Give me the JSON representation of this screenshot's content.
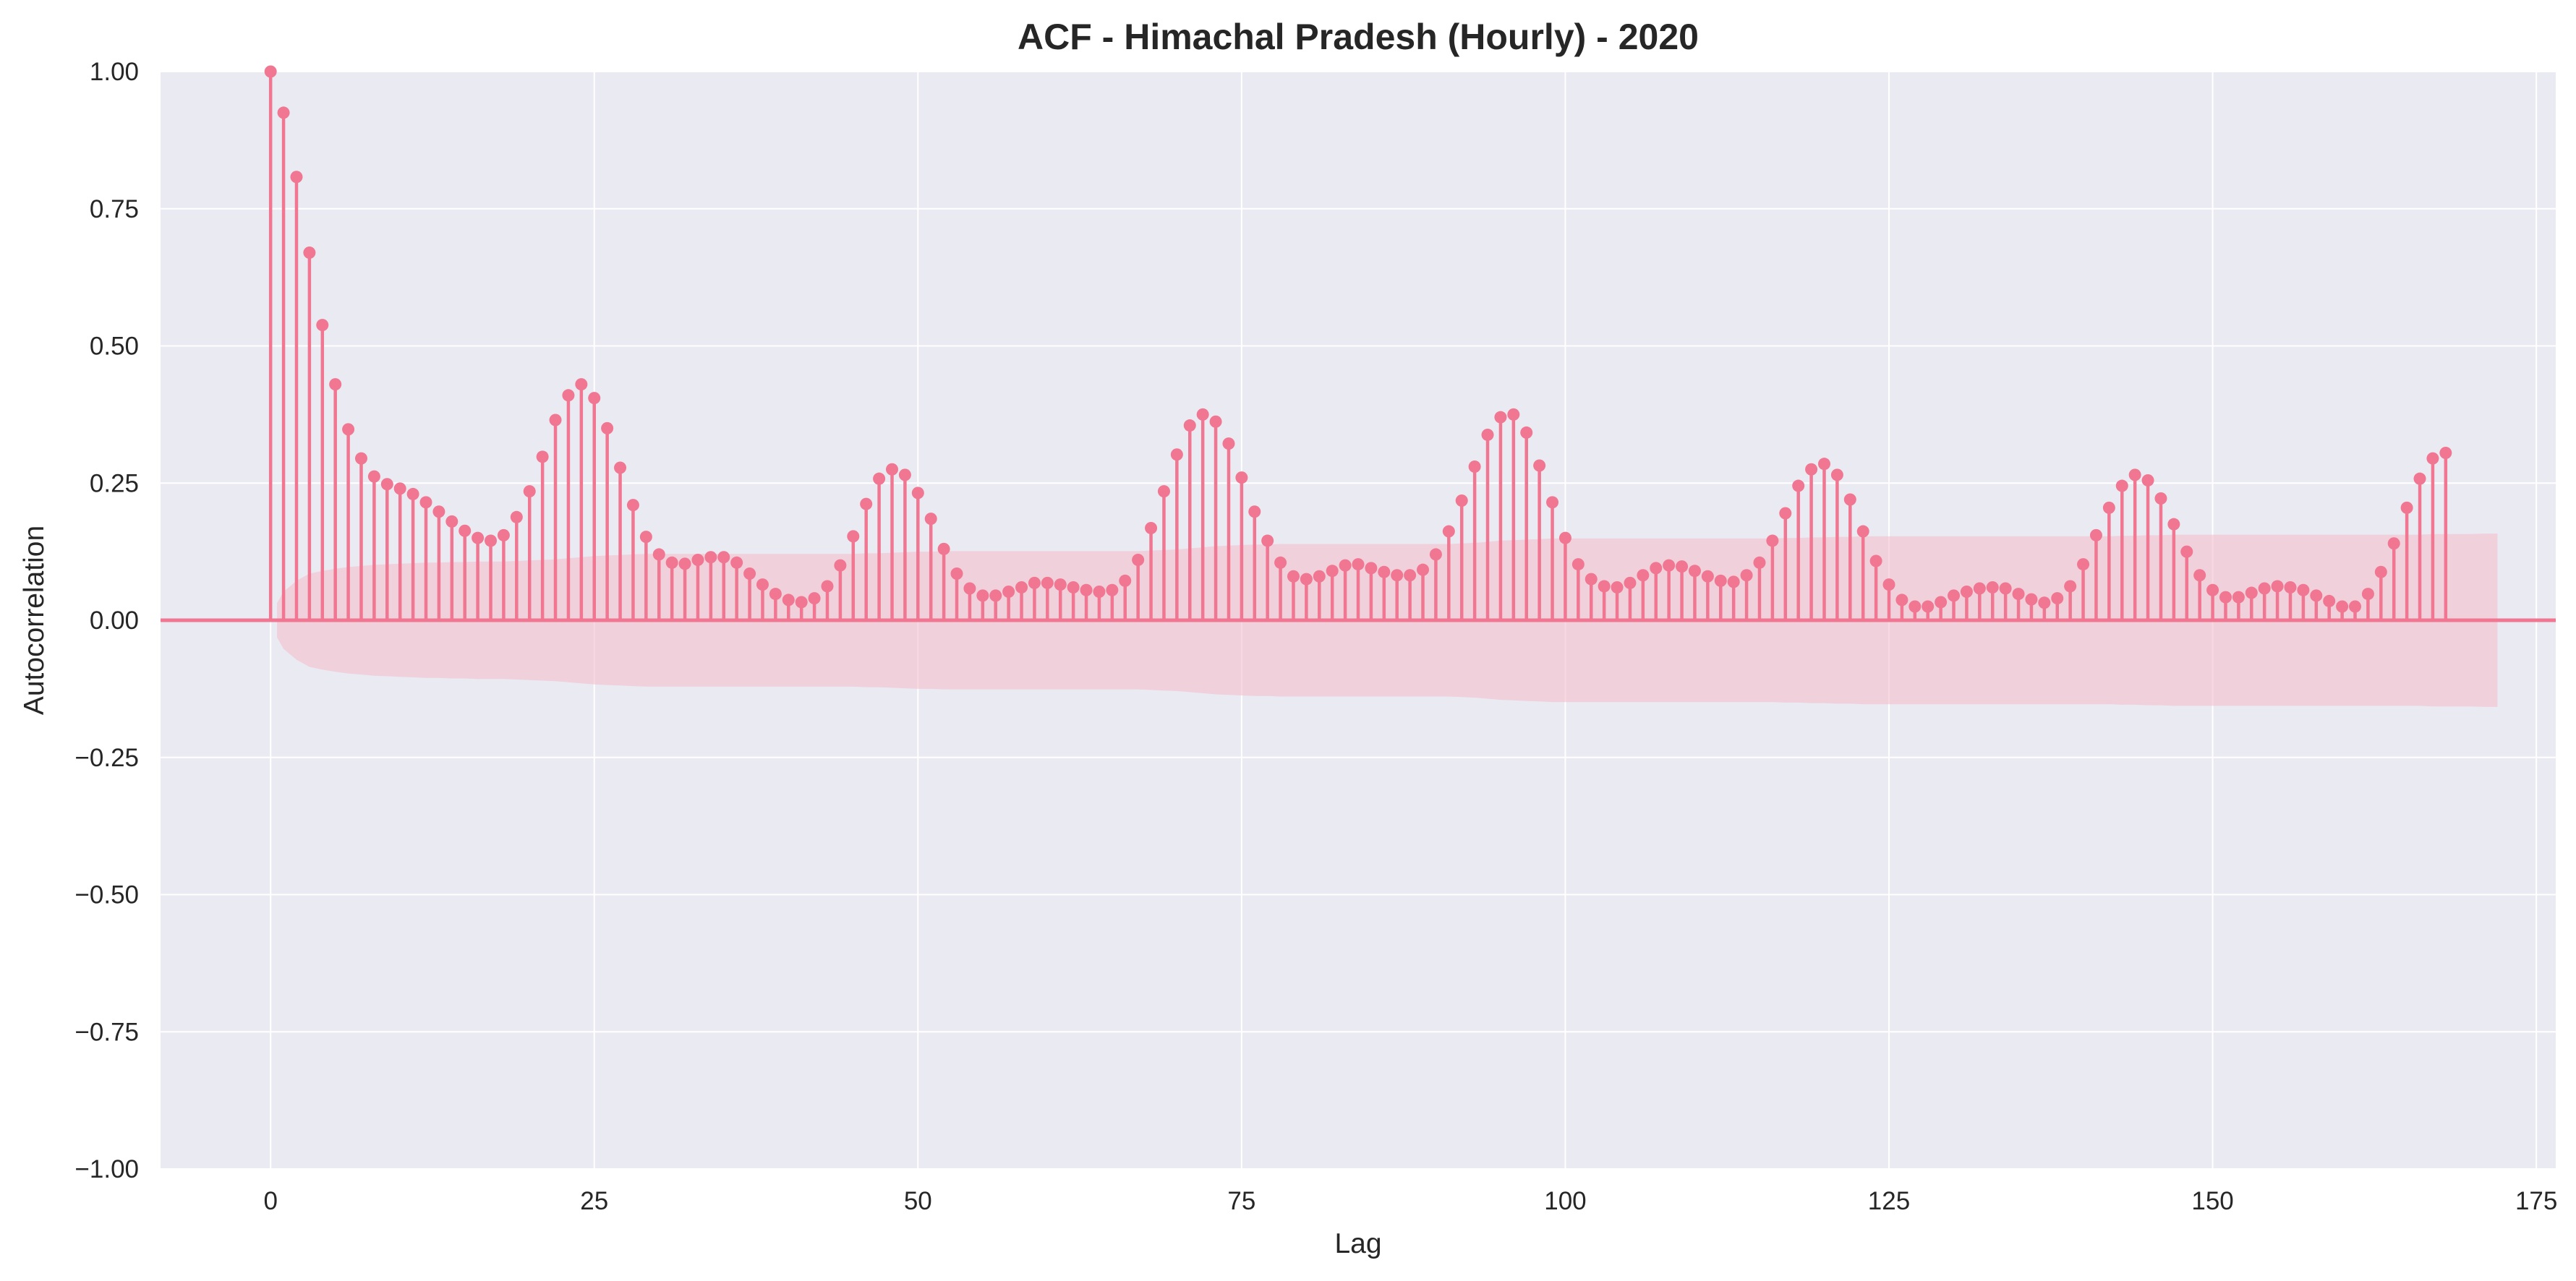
{
  "chart_data": {
    "type": "stem",
    "title": "ACF - Himachal Pradesh (Hourly) - 2020",
    "xlabel": "Lag",
    "ylabel": "Autocorrelation",
    "xlim": [
      -8.5,
      176.5
    ],
    "ylim": [
      -1.0,
      1.0
    ],
    "xticks": [
      0,
      25,
      50,
      75,
      100,
      125,
      150,
      175
    ],
    "yticks": [
      -1.0,
      -0.75,
      -0.5,
      -0.25,
      0.0,
      0.25,
      0.5,
      0.75,
      1.0
    ],
    "xtick_labels": [
      "0",
      "25",
      "50",
      "75",
      "100",
      "125",
      "150",
      "175"
    ],
    "ytick_labels": [
      "−1.00",
      "−0.75",
      "−0.50",
      "−0.25",
      "0.00",
      "0.25",
      "0.50",
      "0.75",
      "1.00"
    ],
    "grid": true,
    "colors": {
      "stem": "#f07691",
      "band": "#f4b9c9",
      "background": "#eaeaf2",
      "grid": "#ffffff"
    },
    "acf": [
      1.0,
      0.925,
      0.808,
      0.67,
      0.538,
      0.43,
      0.348,
      0.295,
      0.262,
      0.248,
      0.24,
      0.23,
      0.215,
      0.198,
      0.18,
      0.163,
      0.15,
      0.145,
      0.155,
      0.188,
      0.235,
      0.298,
      0.365,
      0.41,
      0.43,
      0.405,
      0.35,
      0.278,
      0.21,
      0.152,
      0.12,
      0.105,
      0.103,
      0.11,
      0.115,
      0.115,
      0.105,
      0.085,
      0.065,
      0.048,
      0.037,
      0.033,
      0.04,
      0.062,
      0.1,
      0.153,
      0.212,
      0.258,
      0.275,
      0.265,
      0.232,
      0.185,
      0.13,
      0.085,
      0.058,
      0.045,
      0.045,
      0.052,
      0.06,
      0.068,
      0.068,
      0.065,
      0.06,
      0.055,
      0.052,
      0.055,
      0.072,
      0.11,
      0.168,
      0.235,
      0.302,
      0.355,
      0.375,
      0.362,
      0.322,
      0.26,
      0.198,
      0.145,
      0.105,
      0.08,
      0.075,
      0.08,
      0.09,
      0.1,
      0.102,
      0.095,
      0.088,
      0.082,
      0.082,
      0.092,
      0.12,
      0.162,
      0.218,
      0.28,
      0.338,
      0.37,
      0.375,
      0.342,
      0.282,
      0.215,
      0.15,
      0.102,
      0.075,
      0.062,
      0.06,
      0.068,
      0.082,
      0.095,
      0.1,
      0.098,
      0.09,
      0.08,
      0.072,
      0.07,
      0.082,
      0.105,
      0.145,
      0.195,
      0.245,
      0.275,
      0.285,
      0.265,
      0.22,
      0.162,
      0.108,
      0.065,
      0.037,
      0.025,
      0.025,
      0.033,
      0.045,
      0.052,
      0.058,
      0.06,
      0.058,
      0.048,
      0.038,
      0.032,
      0.04,
      0.062,
      0.102,
      0.155,
      0.205,
      0.245,
      0.265,
      0.255,
      0.222,
      0.175,
      0.125,
      0.082,
      0.055,
      0.042,
      0.042,
      0.05,
      0.058,
      0.062,
      0.06,
      0.055,
      0.045,
      0.035,
      0.025,
      0.025,
      0.048,
      0.088,
      0.14,
      0.205,
      0.258,
      0.295,
      0.305
    ],
    "confint_upper": [
      0.0,
      0.052,
      0.072,
      0.085,
      0.09,
      0.094,
      0.097,
      0.099,
      0.101,
      0.102,
      0.103,
      0.104,
      0.105,
      0.105,
      0.106,
      0.106,
      0.107,
      0.107,
      0.107,
      0.108,
      0.109,
      0.11,
      0.111,
      0.113,
      0.115,
      0.117,
      0.118,
      0.119,
      0.12,
      0.121,
      0.121,
      0.121,
      0.121,
      0.121,
      0.121,
      0.121,
      0.121,
      0.121,
      0.121,
      0.121,
      0.121,
      0.121,
      0.121,
      0.121,
      0.121,
      0.121,
      0.122,
      0.122,
      0.123,
      0.124,
      0.125,
      0.125,
      0.126,
      0.126,
      0.126,
      0.126,
      0.126,
      0.126,
      0.126,
      0.126,
      0.126,
      0.126,
      0.126,
      0.126,
      0.126,
      0.126,
      0.126,
      0.126,
      0.127,
      0.128,
      0.129,
      0.131,
      0.133,
      0.135,
      0.136,
      0.137,
      0.138,
      0.138,
      0.139,
      0.139,
      0.139,
      0.139,
      0.139,
      0.139,
      0.139,
      0.139,
      0.139,
      0.139,
      0.139,
      0.139,
      0.139,
      0.139,
      0.14,
      0.141,
      0.143,
      0.145,
      0.146,
      0.147,
      0.148,
      0.149,
      0.149,
      0.149,
      0.149,
      0.149,
      0.149,
      0.149,
      0.149,
      0.149,
      0.149,
      0.149,
      0.149,
      0.149,
      0.149,
      0.149,
      0.149,
      0.149,
      0.149,
      0.15,
      0.15,
      0.151,
      0.151,
      0.152,
      0.152,
      0.153,
      0.153,
      0.153,
      0.153,
      0.153,
      0.153,
      0.153,
      0.153,
      0.153,
      0.153,
      0.153,
      0.153,
      0.153,
      0.153,
      0.153,
      0.153,
      0.153,
      0.153,
      0.153,
      0.153,
      0.154,
      0.154,
      0.155,
      0.155,
      0.156,
      0.156,
      0.156,
      0.156,
      0.156,
      0.156,
      0.156,
      0.156,
      0.156,
      0.156,
      0.156,
      0.156,
      0.156,
      0.156,
      0.156,
      0.156,
      0.156,
      0.156,
      0.156,
      0.156,
      0.157,
      0.157,
      0.157,
      0.157,
      0.158,
      0.158
    ]
  }
}
